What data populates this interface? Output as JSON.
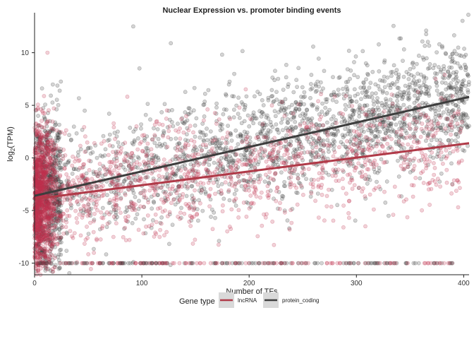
{
  "chart_data": {
    "type": "scatter",
    "title": "Nuclear Expression vs. promoter binding events",
    "xlabel": "Number of TFs",
    "ylabel_main": "log",
    "ylabel_sub": "2",
    "ylabel_tail": "(TPM)",
    "xlim": [
      0,
      405
    ],
    "ylim": [
      -11.1,
      13.8
    ],
    "x_ticks": [
      0,
      100,
      200,
      300,
      400
    ],
    "y_ticks": [
      -10,
      -5,
      0,
      5,
      10
    ],
    "x_tick_labels": [
      "0",
      "100",
      "200",
      "300",
      "400"
    ],
    "y_tick_labels": [
      "-10",
      "-5",
      "0",
      "5",
      "10"
    ],
    "grid": false,
    "legend": {
      "title": "Gene type",
      "placement": "bottom",
      "entries": [
        "lncRNA",
        "protein_coding"
      ]
    },
    "series": [
      {
        "name": "lncRNA",
        "color": "#c0314f",
        "line_color": "#b03a48",
        "point_alpha": 0.22,
        "trend": {
          "x": [
            0,
            405
          ],
          "y": [
            -3.9,
            1.4
          ]
        },
        "sample_points": [
          {
            "x": 2,
            "y": 0.5
          },
          {
            "x": 5,
            "y": 3.1
          },
          {
            "x": 8,
            "y": -2.2
          },
          {
            "x": 12,
            "y": 10.0
          },
          {
            "x": 20,
            "y": 1.2
          },
          {
            "x": 40,
            "y": -4.1
          },
          {
            "x": 75,
            "y": 1.8
          },
          {
            "x": 120,
            "y": -0.6
          },
          {
            "x": 180,
            "y": 2.4
          },
          {
            "x": 240,
            "y": -1.1
          },
          {
            "x": 300,
            "y": 0.3
          },
          {
            "x": 360,
            "y": 2.0
          }
        ]
      },
      {
        "name": "protein_coding",
        "color": "#3a3a3a",
        "line_color": "#3d3d3d",
        "point_alpha": 0.22,
        "trend": {
          "x": [
            0,
            405
          ],
          "y": [
            -3.6,
            5.8
          ]
        },
        "sample_points": [
          {
            "x": 92,
            "y": 12.5
          },
          {
            "x": 127,
            "y": 10.9
          },
          {
            "x": 365,
            "y": 12.1
          },
          {
            "x": 380,
            "y": 10.5
          },
          {
            "x": 402,
            "y": 9.8
          },
          {
            "x": 250,
            "y": 4.2
          },
          {
            "x": 310,
            "y": 5.0
          },
          {
            "x": 150,
            "y": 1.0
          },
          {
            "x": 60,
            "y": -1.5
          },
          {
            "x": 330,
            "y": -5.5
          },
          {
            "x": 4,
            "y": -8.2
          },
          {
            "x": 200,
            "y": 3.0
          }
        ]
      }
    ],
    "floor_value": -10
  }
}
